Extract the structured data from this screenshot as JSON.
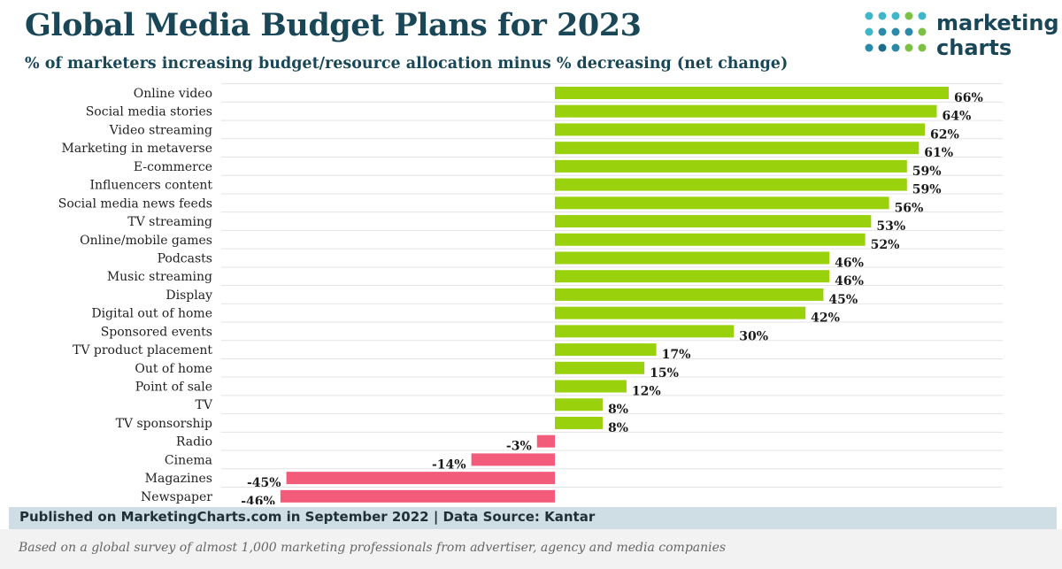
{
  "header": {
    "title": "Global Media Budget Plans for 2023",
    "subtitle": "% of marketers increasing budget/resource allocation minus % decreasing (net change)"
  },
  "logo": {
    "line1": "marketing",
    "line2": "charts",
    "dot_colors": [
      "#3fb6c9",
      "#2a8aa8",
      "#7cc143",
      "#1a6e8a"
    ]
  },
  "chart_data": {
    "type": "bar",
    "orientation": "horizontal",
    "title": "Global Media Budget Plans for 2023",
    "subtitle": "% of marketers increasing budget/resource allocation minus % decreasing (net change)",
    "categories": [
      "Online video",
      "Social media stories",
      "Video streaming",
      "Marketing in metaverse",
      "E-commerce",
      "Influencers content",
      "Social media news feeds",
      "TV streaming",
      "Online/mobile games",
      "Podcasts",
      "Music streaming",
      "Display",
      "Digital out of home",
      "Sponsored events",
      "TV product placement",
      "Out of home",
      "Point of sale",
      "TV",
      "TV sponsorship",
      "Radio",
      "Cinema",
      "Magazines",
      "Newspaper"
    ],
    "values": [
      66,
      64,
      62,
      61,
      59,
      59,
      56,
      53,
      52,
      46,
      46,
      45,
      42,
      30,
      17,
      15,
      12,
      8,
      8,
      -3,
      -14,
      -45,
      -46
    ],
    "value_labels": [
      "66%",
      "64%",
      "62%",
      "61%",
      "59%",
      "59%",
      "56%",
      "53%",
      "52%",
      "46%",
      "46%",
      "45%",
      "42%",
      "30%",
      "17%",
      "15%",
      "12%",
      "8%",
      "8%",
      "-3%",
      "-14%",
      "-45%",
      "-46%"
    ],
    "xlim": [
      -46,
      66
    ],
    "grid": true,
    "legend": "none",
    "colors": {
      "positive": "#99d10c",
      "negative": "#f25c7a",
      "grid": "#e3e3e3",
      "label": "#222222"
    }
  },
  "footer": {
    "source": "Published on MarketingCharts.com in September 2022 | Data Source: Kantar",
    "note": "Based on a global survey of almost 1,000 marketing professionals from advertiser, agency and media companies"
  }
}
